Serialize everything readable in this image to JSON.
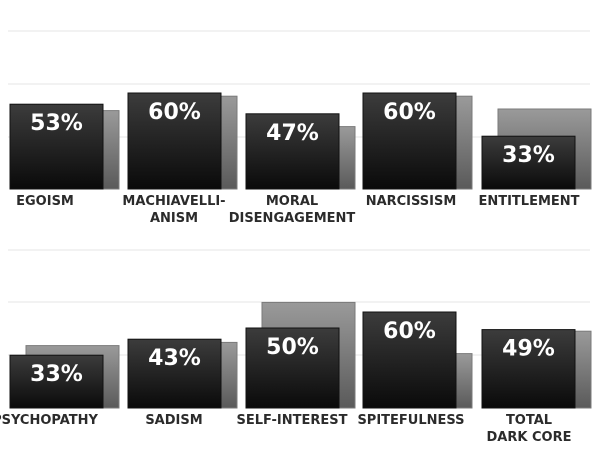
{
  "chart_data": {
    "type": "bar",
    "categories": [
      [
        "EGOISM"
      ],
      [
        "MACHIAVELLI-",
        "ANISM"
      ],
      [
        "MORAL",
        "DISENGAGEMENT"
      ],
      [
        "NARCISSISM"
      ],
      [
        "ENTITLEMENT"
      ],
      [
        "PSYCHOPATHY"
      ],
      [
        "SADISM"
      ],
      [
        "SELF-INTEREST"
      ],
      [
        "SPITEFULNESS"
      ],
      [
        "TOTAL",
        "DARK CORE"
      ]
    ],
    "series": [
      {
        "values": [
          53,
          60,
          47,
          60,
          33,
          33,
          43,
          50,
          60,
          49
        ]
      },
      {
        "values": [
          49,
          58,
          39,
          58,
          50,
          39,
          41,
          66,
          34,
          48
        ]
      }
    ],
    "value_labels": [
      "53%",
      "60%",
      "47%",
      "60%",
      "33%",
      "33%",
      "43%",
      "50%",
      "60%",
      "49%"
    ],
    "ylim": [
      0,
      100
    ],
    "grid": true,
    "legend": "none",
    "layout": "two rows of five bar groups",
    "colors": {
      "front_bar_top": "#3c3c3c",
      "front_bar_bottom": "#0a0a0a",
      "back_bar_top": "#9a9a9a",
      "back_bar_bottom": "#5a5a5a",
      "value_text": "#ffffff",
      "label_text": "#2b2b2b",
      "grid": "#e6e6e6"
    }
  }
}
